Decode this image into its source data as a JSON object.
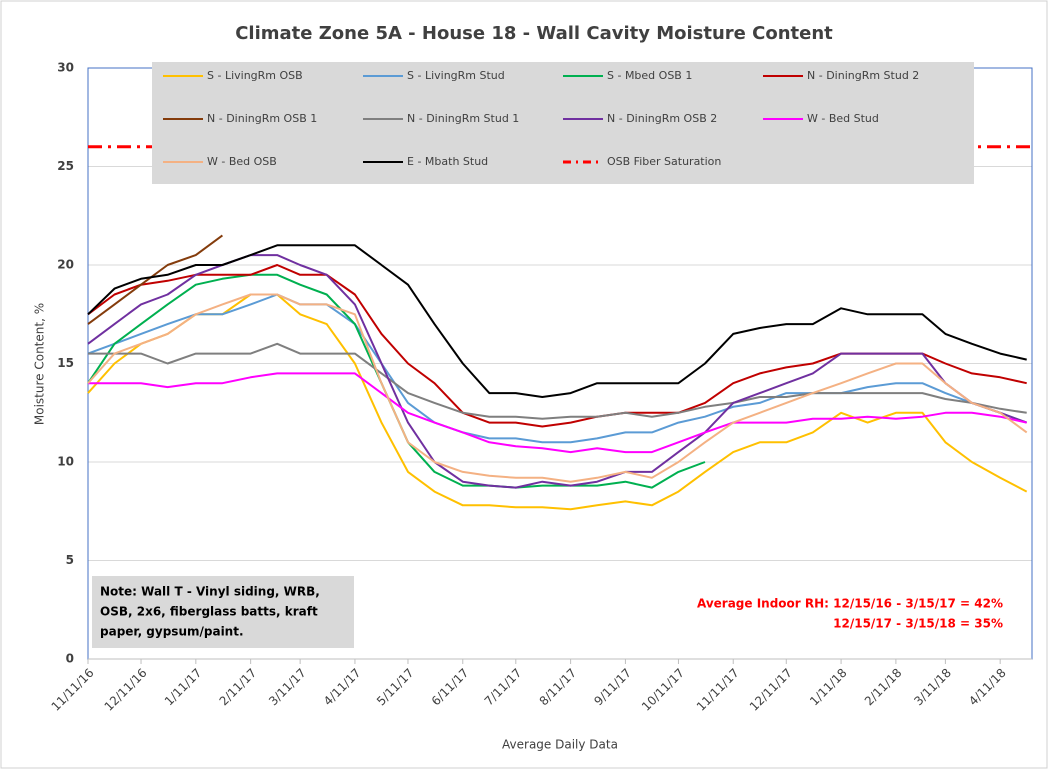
{
  "chart_data": {
    "type": "line",
    "title": "Climate Zone 5A - House 18 - Wall Cavity Moisture Content",
    "xlabel": "Average Daily Data",
    "ylabel": "Moisture Content, %",
    "x": [
      "11/11/16",
      "11/26/16",
      "12/11/16",
      "12/26/16",
      "1/11/17",
      "1/26/17",
      "2/11/17",
      "2/26/17",
      "3/11/17",
      "3/26/17",
      "4/11/17",
      "4/26/17",
      "5/11/17",
      "5/26/17",
      "6/11/17",
      "6/26/17",
      "7/11/17",
      "7/26/17",
      "8/11/17",
      "8/26/17",
      "9/11/17",
      "9/26/17",
      "10/11/17",
      "10/26/17",
      "11/11/17",
      "11/26/17",
      "12/11/17",
      "12/26/17",
      "1/11/18",
      "1/26/18",
      "2/11/18",
      "2/26/18",
      "3/11/18",
      "3/26/18",
      "4/11/18",
      "4/26/18"
    ],
    "xlim": [
      "11/11/16",
      "4/29/18"
    ],
    "xticks": [
      "11/11/16",
      "12/11/16",
      "1/11/17",
      "2/11/17",
      "3/11/17",
      "4/11/17",
      "5/11/17",
      "6/11/17",
      "7/11/17",
      "8/11/17",
      "9/11/17",
      "10/11/17",
      "11/11/17",
      "12/11/17",
      "1/11/18",
      "2/11/18",
      "3/11/18",
      "4/11/18"
    ],
    "ylim": [
      0,
      30
    ],
    "yticks": [
      0,
      5,
      10,
      15,
      20,
      25,
      30
    ],
    "grid": true,
    "series": [
      {
        "name": "S - LivingRm OSB",
        "color": "#ffc000",
        "values": [
          13.5,
          15,
          16,
          16.5,
          17.5,
          17.5,
          18.5,
          18.5,
          17.5,
          17,
          15,
          12,
          9.5,
          8.5,
          7.8,
          7.8,
          7.7,
          7.7,
          7.6,
          7.8,
          8,
          7.8,
          8.5,
          9.5,
          10.5,
          11,
          11,
          11.5,
          12.5,
          12,
          12.5,
          12.5,
          11,
          10,
          9.2,
          8.5
        ]
      },
      {
        "name": "S - LivingRm Stud",
        "color": "#5b9bd5",
        "values": [
          15.5,
          16,
          16.5,
          17,
          17.5,
          17.5,
          18,
          18.5,
          18,
          18,
          17,
          15,
          13,
          12,
          11.5,
          11.2,
          11.2,
          11,
          11,
          11.2,
          11.5,
          11.5,
          12,
          12.3,
          12.8,
          13,
          13.5,
          13.5,
          13.5,
          13.8,
          14,
          14,
          13.5,
          13,
          12.5,
          12
        ]
      },
      {
        "name": "S - Mbed OSB 1",
        "color": "#00b050",
        "values": [
          14,
          16,
          17,
          18,
          19,
          19.3,
          19.5,
          19.5,
          19,
          18.5,
          17,
          14,
          11,
          9.5,
          8.8,
          8.8,
          8.7,
          8.8,
          8.8,
          8.8,
          9,
          8.7,
          9.5,
          10,
          null,
          null,
          null,
          null,
          null,
          null,
          null,
          null,
          null,
          null,
          null,
          null
        ]
      },
      {
        "name": "N - DiningRm Stud 2",
        "color": "#c00000",
        "values": [
          17.5,
          18.5,
          19,
          19.2,
          19.5,
          19.5,
          19.5,
          20,
          19.5,
          19.5,
          18.5,
          16.5,
          15,
          14,
          12.5,
          12,
          12,
          11.8,
          12,
          12.3,
          12.5,
          12.5,
          12.5,
          13,
          14,
          14.5,
          14.8,
          15,
          15.5,
          15.5,
          15.5,
          15.5,
          15,
          14.5,
          14.3,
          14
        ]
      },
      {
        "name": "N - DiningRm OSB 1",
        "color": "#843c0c",
        "values": [
          17,
          18,
          19,
          20,
          20.5,
          21.5,
          null,
          null,
          null,
          null,
          null,
          null,
          null,
          null,
          null,
          null,
          null,
          null,
          null,
          null,
          null,
          null,
          null,
          null,
          null,
          null,
          null,
          null,
          null,
          null,
          null,
          null,
          null,
          null,
          null,
          null
        ]
      },
      {
        "name": "N - DiningRm Stud 1",
        "color": "#7f7f7f",
        "values": [
          15.5,
          15.5,
          15.5,
          15,
          15.5,
          15.5,
          15.5,
          16,
          15.5,
          15.5,
          15.5,
          14.5,
          13.5,
          13,
          12.5,
          12.3,
          12.3,
          12.2,
          12.3,
          12.3,
          12.5,
          12.3,
          12.5,
          12.8,
          13,
          13.3,
          13.3,
          13.5,
          13.5,
          13.5,
          13.5,
          13.5,
          13.2,
          13,
          12.7,
          12.5
        ]
      },
      {
        "name": "N - DiningRm OSB 2",
        "color": "#7030a0",
        "values": [
          16,
          17,
          18,
          18.5,
          19.5,
          20,
          20.5,
          20.5,
          20,
          19.5,
          18,
          15,
          12,
          10,
          9,
          8.8,
          8.7,
          9,
          8.8,
          9,
          9.5,
          9.5,
          10.5,
          11.5,
          13,
          13.5,
          14,
          14.5,
          15.5,
          15.5,
          15.5,
          15.5,
          14,
          13,
          12.5,
          12
        ]
      },
      {
        "name": "W - Bed Stud",
        "color": "#ff00ff",
        "values": [
          14,
          14,
          14,
          13.8,
          14,
          14,
          14.3,
          14.5,
          14.5,
          14.5,
          14.5,
          13.5,
          12.5,
          12,
          11.5,
          11,
          10.8,
          10.7,
          10.5,
          10.7,
          10.5,
          10.5,
          11,
          11.5,
          12,
          12,
          12,
          12.2,
          12.2,
          12.3,
          12.2,
          12.3,
          12.5,
          12.5,
          12.3,
          12
        ]
      },
      {
        "name": "W - Bed OSB",
        "color": "#f4b183",
        "values": [
          14,
          15.5,
          16,
          16.5,
          17.5,
          18,
          18.5,
          18.5,
          18,
          18,
          17.5,
          14,
          11,
          10,
          9.5,
          9.3,
          9.2,
          9.2,
          9,
          9.2,
          9.5,
          9.2,
          10,
          11,
          12,
          12.5,
          13,
          13.5,
          14,
          14.5,
          15,
          15,
          14,
          13,
          12.5,
          11.5
        ]
      },
      {
        "name": "E - Mbath Stud",
        "color": "#000000",
        "values": [
          17.5,
          18.8,
          19.3,
          19.5,
          20,
          20,
          20.5,
          21,
          21,
          21,
          21,
          20,
          19,
          17,
          15,
          13.5,
          13.5,
          13.3,
          13.5,
          14,
          14,
          14,
          14,
          15,
          16.5,
          16.8,
          17,
          17,
          17.8,
          17.5,
          17.5,
          17.5,
          16.5,
          16,
          15.5,
          15.2
        ]
      }
    ],
    "reference_lines": [
      {
        "name": "OSB Fiber Saturation",
        "value": 26,
        "color": "#ff0000"
      }
    ],
    "note": [
      "Note: Wall T - Vinyl siding, WRB,",
      "OSB, 2x6, fiberglass batts, kraft",
      "paper, gypsum/paint."
    ],
    "annotations": [
      "Average Indoor RH: 12/15/16 - 3/15/17 = 42%",
      "12/15/17 - 3/15/18 = 35%"
    ]
  }
}
